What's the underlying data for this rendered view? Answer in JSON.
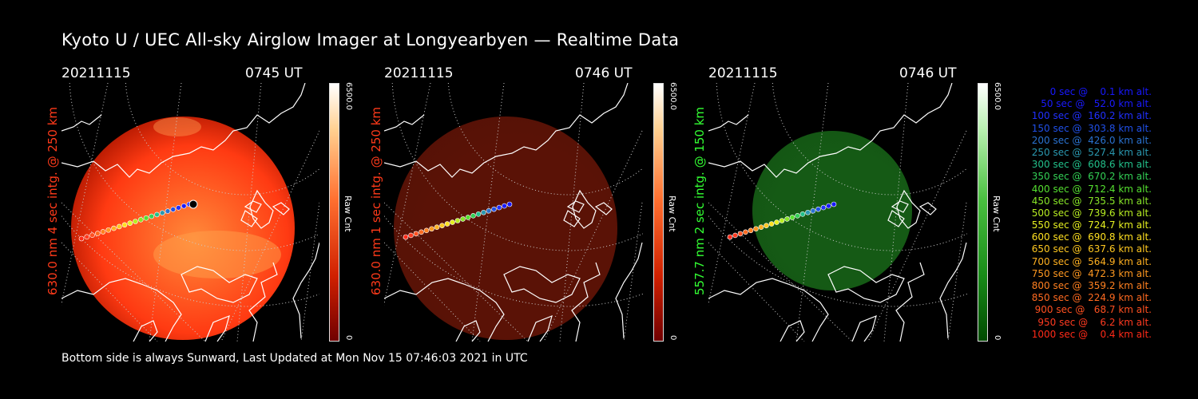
{
  "title": "Kyoto U / UEC All-sky Airglow Imager at Longyearbyen — Realtime Data",
  "footer": "Bottom side is always Sunward, Last Updated at Mon Nov 15 07:46:03 2021 in UTC",
  "panels": [
    {
      "date": "20211115",
      "time": "0745 UT",
      "side_label": "630.0 nm 4 sec intg. @ 250 km",
      "label_color": "#ff3a1a",
      "tint": "#ff3a12",
      "brightness": "bright",
      "colorbar": {
        "max": "6500.0",
        "min": "0",
        "unit": "Raw Cnt",
        "top_color": "#ffffff",
        "bottom_color": "#7a0000"
      }
    },
    {
      "date": "20211115",
      "time": "0746 UT",
      "side_label": "630.0 nm 1 sec intg. @ 250 km",
      "label_color": "#ff3a1a",
      "tint": "#5a1206",
      "brightness": "dim",
      "colorbar": {
        "max": "6500.0",
        "min": "0",
        "unit": "Raw Cnt",
        "top_color": "#ffffff",
        "bottom_color": "#7a0000"
      }
    },
    {
      "date": "20211115",
      "time": "0746 UT",
      "side_label": "557.7 nm 2 sec intg. @ 150 km",
      "label_color": "#33ff33",
      "tint": "#155a15",
      "brightness": "dim",
      "colorbar": {
        "max": "6500.0",
        "min": "0",
        "unit": "Raw Cnt",
        "top_color": "#ffffff",
        "bottom_color": "#005500"
      }
    }
  ],
  "legend": [
    {
      "text": "   0 sec @    0.1 km alt.",
      "color": "#1818ff"
    },
    {
      "text": "  50 sec @   52.0 km alt.",
      "color": "#1a1aff"
    },
    {
      "text": " 100 sec @  160.2 km alt.",
      "color": "#2030ff"
    },
    {
      "text": " 150 sec @  303.8 km alt.",
      "color": "#2050e8"
    },
    {
      "text": " 200 sec @  426.0 km alt.",
      "color": "#2a72d0"
    },
    {
      "text": " 250 sec @  527.4 km alt.",
      "color": "#2a98b0"
    },
    {
      "text": " 300 sec @  608.6 km alt.",
      "color": "#22c08a"
    },
    {
      "text": " 350 sec @  670.2 km alt.",
      "color": "#33d055"
    },
    {
      "text": " 400 sec @  712.4 km alt.",
      "color": "#55e030"
    },
    {
      "text": " 450 sec @  735.5 km alt.",
      "color": "#88e628"
    },
    {
      "text": " 500 sec @  739.6 km alt.",
      "color": "#b8ee22"
    },
    {
      "text": " 550 sec @  724.7 km alt.",
      "color": "#e6f020"
    },
    {
      "text": " 600 sec @  690.8 km alt.",
      "color": "#ffe020"
    },
    {
      "text": " 650 sec @  637.6 km alt.",
      "color": "#ffc820"
    },
    {
      "text": " 700 sec @  564.9 km alt.",
      "color": "#ffb020"
    },
    {
      "text": " 750 sec @  472.3 km alt.",
      "color": "#ff9820"
    },
    {
      "text": " 800 sec @  359.2 km alt.",
      "color": "#ff8020"
    },
    {
      "text": " 850 sec @  224.9 km alt.",
      "color": "#ff6a20"
    },
    {
      "text": " 900 sec @   68.7 km alt.",
      "color": "#ff5020"
    },
    {
      "text": " 950 sec @    6.2 km alt.",
      "color": "#ff3a20"
    },
    {
      "text": "1000 sec @    0.4 km alt.",
      "color": "#ff2a18"
    }
  ]
}
